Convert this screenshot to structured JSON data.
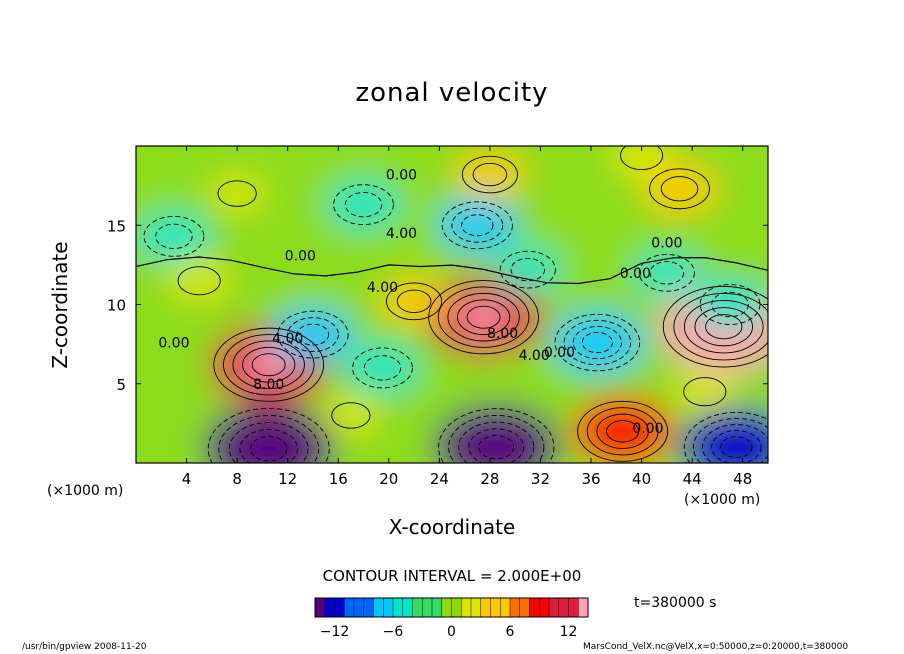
{
  "chart_data": {
    "type": "heatmap",
    "title": "zonal velocity",
    "xlabel": "X-coordinate",
    "ylabel": "Z-coordinate",
    "x_unit_left": "(×1000 m)",
    "x_unit_right": "(×1000 m)",
    "xlim": [
      0,
      50
    ],
    "ylim": [
      0,
      20
    ],
    "xticks": [
      4,
      8,
      12,
      16,
      20,
      24,
      28,
      32,
      36,
      40,
      44,
      48
    ],
    "yticks": [
      5,
      10,
      15
    ],
    "contour_interval_text": "CONTOUR INTERVAL = 2.000E+00",
    "time_text": "t=380000 s",
    "contour_labels": [
      {
        "text": "0.00",
        "x": 21,
        "z": 18.2
      },
      {
        "text": "4.00",
        "x": 21,
        "z": 14.5
      },
      {
        "text": "0.00",
        "x": 13,
        "z": 13.1
      },
      {
        "text": "0.00",
        "x": 42,
        "z": 13.9
      },
      {
        "text": "0.00",
        "x": 39.5,
        "z": 12.0
      },
      {
        "text": "4.00",
        "x": 19.5,
        "z": 11.1
      },
      {
        "text": "8.00",
        "x": 29,
        "z": 8.2
      },
      {
        "text": "4.00",
        "x": 31.5,
        "z": 6.8
      },
      {
        "text": "0.00",
        "x": 33.5,
        "z": 7.0
      },
      {
        "text": "0.00",
        "x": 3,
        "z": 7.6
      },
      {
        "text": "4.00",
        "x": 12,
        "z": 7.9
      },
      {
        "text": "8.00",
        "x": 10.5,
        "z": 5.0
      },
      {
        "text": "0.00",
        "x": 40.5,
        "z": 2.2
      }
    ],
    "features": [
      {
        "x": 10.5,
        "z": 6.2,
        "value": 12
      },
      {
        "x": 27.5,
        "z": 9.2,
        "value": 12
      },
      {
        "x": 46.5,
        "z": 8.6,
        "value": 14
      },
      {
        "x": 38.5,
        "z": 2.0,
        "value": 9
      },
      {
        "x": 10.5,
        "z": 0.9,
        "value": -14
      },
      {
        "x": 28.5,
        "z": 1.0,
        "value": -13
      },
      {
        "x": 47.5,
        "z": 1.0,
        "value": -11
      },
      {
        "x": 36.5,
        "z": 7.6,
        "value": -8
      },
      {
        "x": 18,
        "z": 16.3,
        "value": -5
      },
      {
        "x": 27,
        "z": 15.0,
        "value": -6
      },
      {
        "x": 14,
        "z": 8.1,
        "value": -6
      },
      {
        "x": 19.5,
        "z": 6.0,
        "value": -5
      },
      {
        "x": 47,
        "z": 10.0,
        "value": -5
      },
      {
        "x": 3,
        "z": 14.3,
        "value": -5
      },
      {
        "x": 42,
        "z": 12.0,
        "value": -4
      },
      {
        "x": 31,
        "z": 12.2,
        "value": -4
      },
      {
        "x": 28,
        "z": 18.2,
        "value": 4
      },
      {
        "x": 43,
        "z": 17.3,
        "value": 5
      },
      {
        "x": 8,
        "z": 17.0,
        "value": 2
      },
      {
        "x": 40,
        "z": 19.4,
        "value": 3
      },
      {
        "x": 17,
        "z": 3.0,
        "value": 2
      },
      {
        "x": 45,
        "z": 4.5,
        "value": 3
      },
      {
        "x": 5,
        "z": 11.5,
        "value": 3
      },
      {
        "x": 22,
        "z": 10.2,
        "value": 4
      }
    ],
    "colorbar": {
      "range": [
        -14,
        14
      ],
      "ticks": [
        -12,
        -6,
        0,
        6,
        12
      ],
      "tick_labels": [
        "−12",
        "−6",
        "0",
        "6",
        "12"
      ],
      "colors": [
        "#5a007f",
        "#0000c8",
        "#0064ff",
        "#00c8ff",
        "#00e6c8",
        "#32dc64",
        "#8cdc00",
        "#dce600",
        "#ffc800",
        "#ff6e00",
        "#ff0000",
        "#dc1e3c",
        "#ffa0b4"
      ]
    }
  },
  "footer": {
    "left": "/usr/bin/gpview  2008-11-20",
    "right": "MarsCond_VelX.nc@VelX,x=0:50000,z=0:20000,t=380000"
  }
}
